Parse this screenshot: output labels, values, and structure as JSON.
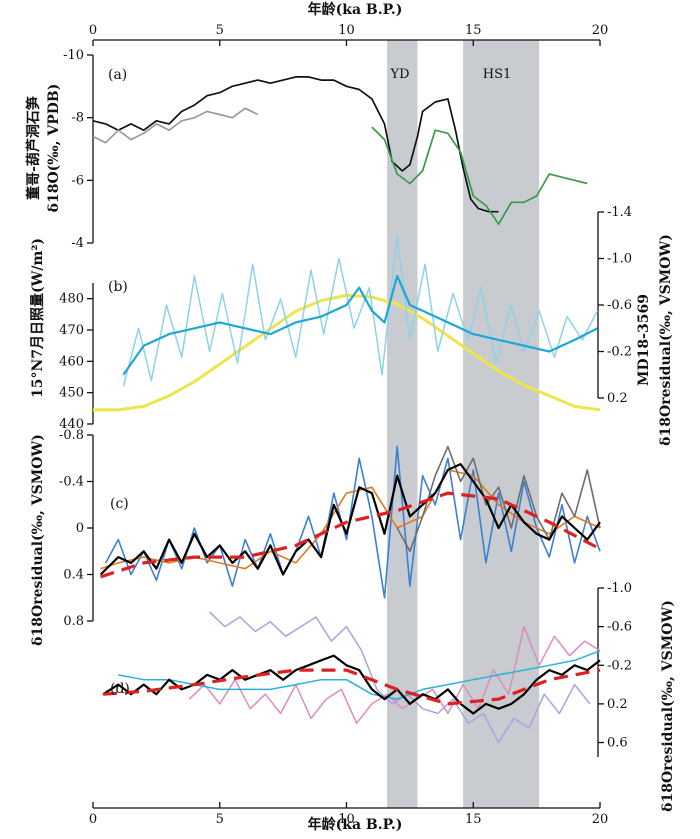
{
  "figure": {
    "top_axis_title": "年龄(ka B.P.)",
    "bottom_axis_title": "年龄(ka B.P.)",
    "x_ticks": [
      "0",
      "5",
      "10",
      "15",
      "20"
    ],
    "bands": [
      {
        "label": "YD",
        "start": 11.6,
        "end": 12.8,
        "color": "#c8ccd0"
      },
      {
        "label": "HS1",
        "start": 14.6,
        "end": 17.6,
        "color": "#c8ccd0"
      }
    ]
  },
  "chart_data": [
    {
      "panel": "(a)",
      "type": "line",
      "xlim": [
        0,
        20
      ],
      "ylim": [
        -10,
        -4
      ],
      "ylabel_lines": [
        "董哥-葫芦洞石笋",
        "δ18O(‰, VPDB)"
      ],
      "yticks": [
        "-10",
        "-8",
        "-6",
        "-4"
      ],
      "series": [
        {
          "name": "董哥洞石笋 δ18O",
          "color": "#111111",
          "x": [
            0,
            0.5,
            1,
            1.5,
            2,
            2.5,
            3,
            3.5,
            4,
            4.5,
            5,
            5.5,
            6,
            6.5,
            7,
            7.5,
            8,
            8.5,
            9,
            9.5,
            10,
            10.5,
            11,
            11.5,
            11.8,
            12.2,
            12.5,
            12.8,
            13,
            13.5,
            14,
            14.3,
            14.6,
            14.9,
            15.2,
            15.6,
            16
          ],
          "y": [
            -7.9,
            -7.8,
            -7.6,
            -7.8,
            -7.6,
            -7.9,
            -7.8,
            -8.2,
            -8.4,
            -8.7,
            -8.8,
            -9,
            -9.1,
            -9.2,
            -9.1,
            -9.2,
            -9.3,
            -9.3,
            -9.2,
            -9.2,
            -9.0,
            -8.9,
            -8.6,
            -7.8,
            -6.6,
            -6.3,
            -6.5,
            -7.4,
            -8.2,
            -8.5,
            -8.6,
            -7.6,
            -6.4,
            -5.4,
            -5.1,
            -5.0,
            -5.0
          ]
        },
        {
          "name": "葫芦洞石笋 δ18O (灰)",
          "color": "#9a9a9a",
          "x": [
            0,
            0.5,
            1,
            1.5,
            2,
            2.5,
            3,
            3.5,
            4,
            4.5,
            5,
            5.5,
            6,
            6.5
          ],
          "y": [
            -7.4,
            -7.2,
            -7.6,
            -7.3,
            -7.5,
            -7.8,
            -7.6,
            -7.9,
            -8.0,
            -8.2,
            -8.1,
            -8.0,
            -8.3,
            -8.1
          ]
        },
        {
          "name": "葫芦洞石笋 δ18O (绿)",
          "color": "#3a9a48",
          "x": [
            11,
            11.5,
            12,
            12.5,
            13,
            13.5,
            14,
            14.5,
            15,
            15.5,
            16,
            16.5,
            17,
            17.5,
            18,
            18.5,
            19,
            19.5
          ],
          "y": [
            -7.7,
            -7.3,
            -6.2,
            -5.9,
            -6.3,
            -7.6,
            -7.5,
            -6.9,
            -5.5,
            -5.2,
            -4.6,
            -5.3,
            -5.3,
            -5.5,
            -6.2,
            -6.1,
            -6.0,
            -5.9
          ]
        }
      ]
    },
    {
      "panel": "(b)",
      "type": "line",
      "xlim": [
        0,
        20
      ],
      "ylim_left": [
        435,
        485
      ],
      "ylim_right": [
        0.2,
        -1.4
      ],
      "ylabel_left": "15°N7月日照量(W/m²)",
      "ylabel_right_lines": [
        "MD18-3569",
        "δ18Oresidual(‰, VSMOW)"
      ],
      "yticks_left": [
        "440",
        "450",
        "460",
        "470",
        "480"
      ],
      "yticks_right": [
        "-1.4",
        "-1.0",
        "-0.6",
        "-0.2",
        "0.2"
      ],
      "series": [
        {
          "name": "15°N 7月日照量",
          "axis": "left",
          "color": "#eee54a",
          "x": [
            0,
            1,
            2,
            3,
            4,
            5,
            6,
            7,
            8,
            9,
            10,
            11,
            12,
            13,
            14,
            15,
            16,
            17,
            18,
            19,
            20
          ],
          "y": [
            444,
            444,
            445,
            448,
            452,
            457,
            462,
            467,
            472,
            475,
            476.5,
            476,
            474,
            470,
            465,
            460,
            455,
            451,
            448,
            445,
            444
          ]
        },
        {
          "name": "MD18-3569 原始",
          "axis": "right",
          "color": "#8ed2ea",
          "x": [
            1.2,
            1.8,
            2.3,
            2.9,
            3.5,
            4,
            4.6,
            5.1,
            5.7,
            6.3,
            6.8,
            7.4,
            8,
            8.6,
            9.1,
            9.7,
            10.3,
            10.9,
            11.4,
            12,
            12.5,
            13.1,
            13.6,
            14.2,
            14.8,
            15.3,
            15.9,
            16.5,
            17,
            17.6,
            18.2,
            18.7,
            19.3,
            19.9
          ],
          "y": [
            0.1,
            -0.4,
            0.05,
            -0.6,
            -0.15,
            -0.85,
            -0.2,
            -0.7,
            -0.1,
            -0.95,
            -0.3,
            -0.65,
            -0.15,
            -0.9,
            -0.35,
            -1.0,
            -0.4,
            -0.75,
            0.0,
            -1.2,
            -0.3,
            -0.95,
            -0.2,
            -0.7,
            -0.3,
            -0.75,
            -0.1,
            -0.6,
            -0.2,
            -0.55,
            -0.15,
            -0.5,
            -0.3,
            -0.55
          ]
        },
        {
          "name": "MD18-3569 平滑",
          "axis": "right",
          "color": "#1ea6d4",
          "x": [
            1.2,
            2,
            3,
            4,
            5,
            6,
            7,
            8,
            9,
            10,
            10.5,
            11,
            11.5,
            12,
            12.5,
            13,
            14,
            15,
            16,
            17,
            18,
            19,
            19.9
          ],
          "y": [
            0.0,
            -0.25,
            -0.35,
            -0.4,
            -0.45,
            -0.4,
            -0.35,
            -0.45,
            -0.5,
            -0.6,
            -0.75,
            -0.55,
            -0.45,
            -0.85,
            -0.6,
            -0.55,
            -0.45,
            -0.35,
            -0.3,
            -0.25,
            -0.2,
            -0.3,
            -0.4
          ]
        }
      ]
    },
    {
      "panel": "(c)",
      "type": "line",
      "xlim": [
        0,
        20
      ],
      "ylim": [
        0.8,
        -0.8
      ],
      "ylabel": "δ18Oresidual(‰, VSMOW)",
      "yticks": [
        "-0.8",
        "-0.4",
        "0",
        "0.4",
        "0.8"
      ],
      "series": [
        {
          "name": "蓝色记录",
          "color": "#3c7fd6",
          "x": [
            0.5,
            1,
            1.5,
            2,
            2.5,
            3,
            3.5,
            4,
            4.5,
            5,
            5.5,
            6,
            6.5,
            7,
            7.5,
            8,
            8.5,
            9,
            9.5,
            10,
            10.5,
            11,
            11.5,
            12,
            12.5,
            13,
            13.5,
            14,
            14.5,
            15,
            15.5,
            16,
            16.5,
            17,
            17.5,
            18,
            18.5,
            19,
            19.5,
            20
          ],
          "y": [
            0.3,
            0.1,
            0.4,
            0.2,
            0.45,
            0.1,
            0.35,
            0.0,
            0.3,
            0.15,
            0.5,
            0.1,
            0.35,
            0.05,
            0.4,
            0.2,
            -0.1,
            0.25,
            -0.3,
            0.1,
            -0.6,
            -0.1,
            0.6,
            -0.7,
            0.5,
            -0.45,
            -0.2,
            -0.6,
            0.1,
            -0.5,
            0.3,
            -0.3,
            0.2,
            -0.4,
            0.0,
            0.25,
            -0.2,
            0.3,
            -0.1,
            0.2
          ]
        },
        {
          "name": "橙色记录",
          "color": "#e07a1c",
          "x": [
            0.3,
            1,
            2,
            3,
            4,
            5,
            6,
            7,
            8,
            9,
            10,
            11,
            12,
            13,
            14,
            15,
            16,
            17,
            18,
            19,
            20
          ],
          "y": [
            0.35,
            0.3,
            0.25,
            0.3,
            0.25,
            0.3,
            0.35,
            0.2,
            0.3,
            0.05,
            -0.3,
            -0.35,
            0.0,
            -0.1,
            -0.5,
            -0.45,
            -0.2,
            -0.05,
            0.05,
            -0.1,
            0.0
          ]
        },
        {
          "name": "灰色记录",
          "color": "#6d6d6d",
          "x": [
            12,
            12.5,
            13,
            13.5,
            14,
            14.5,
            15,
            15.5,
            16,
            16.5,
            17,
            17.5,
            18,
            18.5,
            19,
            19.5,
            20
          ],
          "y": [
            0.0,
            0.2,
            -0.1,
            -0.45,
            -0.7,
            -0.4,
            -0.6,
            -0.2,
            -0.35,
            0.0,
            -0.45,
            -0.1,
            0.1,
            -0.3,
            -0.1,
            -0.5,
            0.0
          ]
        },
        {
          "name": "黑色平滑曲线",
          "color": "#000000",
          "x": [
            0.3,
            1,
            1.5,
            2,
            2.5,
            3,
            3.5,
            4,
            4.5,
            5,
            5.5,
            6,
            6.5,
            7,
            7.5,
            8,
            8.5,
            9,
            9.5,
            10,
            10.5,
            11,
            11.5,
            12,
            12.5,
            13,
            13.5,
            14,
            14.5,
            15,
            15.5,
            16,
            16.5,
            17,
            17.5,
            18,
            18.5,
            19,
            19.5,
            20
          ],
          "y": [
            0.4,
            0.25,
            0.3,
            0.2,
            0.35,
            0.1,
            0.3,
            0.05,
            0.25,
            0.15,
            0.3,
            0.2,
            0.35,
            0.15,
            0.4,
            0.2,
            0.1,
            0.25,
            -0.2,
            0.05,
            -0.35,
            -0.3,
            0.05,
            -0.45,
            -0.1,
            -0.2,
            -0.3,
            -0.5,
            -0.55,
            -0.4,
            -0.25,
            0.0,
            -0.2,
            -0.05,
            0.05,
            0.1,
            -0.1,
            0.0,
            0.1,
            -0.05
          ]
        },
        {
          "name": "红色趋势线",
          "color": "#dd2020",
          "x": [
            0.3,
            2,
            4,
            6,
            8,
            10,
            12,
            14,
            16,
            18,
            20
          ],
          "y": [
            0.42,
            0.3,
            0.25,
            0.25,
            0.15,
            -0.05,
            -0.15,
            -0.3,
            -0.25,
            -0.05,
            0.18
          ]
        }
      ]
    },
    {
      "panel": "(d)",
      "type": "line",
      "xlim": [
        0,
        20
      ],
      "ylim": [
        0.75,
        -1.0
      ],
      "ylabel": "δ18Oresidual(‰, VSMOW)",
      "yticks": [
        "-1.0",
        "-0.6",
        "-0.2",
        "0.2",
        "0.6"
      ],
      "series": [
        {
          "name": "淡紫色记录",
          "color": "#a9a3e2",
          "x": [
            4.6,
            5.2,
            5.8,
            6.4,
            7,
            7.6,
            8.2,
            8.8,
            9.4,
            10,
            10.6,
            11.2,
            11.8,
            12.4,
            13,
            13.6,
            14.2,
            14.8,
            15.4,
            16,
            16.6,
            17.2,
            17.8,
            18.4,
            19,
            19.6
          ],
          "y": [
            -0.75,
            -0.6,
            -0.7,
            -0.55,
            -0.65,
            -0.5,
            -0.6,
            -0.7,
            -0.45,
            -0.6,
            -0.35,
            0.05,
            0.2,
            0.1,
            0.25,
            0.3,
            0.15,
            0.4,
            0.3,
            0.6,
            0.35,
            0.45,
            0.1,
            0.3,
            0.0,
            0.2
          ]
        },
        {
          "name": "粉色记录",
          "color": "#dd8cc0",
          "x": [
            3.8,
            4.4,
            5,
            5.6,
            6.2,
            6.8,
            7.4,
            8,
            8.6,
            9.2,
            9.8,
            10.4,
            11,
            11.6,
            12.2,
            12.8,
            13.4,
            14,
            14.6,
            15.2,
            15.8,
            16.4,
            17,
            17.6,
            18.2,
            18.8,
            19.4,
            20
          ],
          "y": [
            0.15,
            0.0,
            0.2,
            -0.05,
            0.25,
            0.1,
            0.3,
            0.0,
            0.35,
            0.15,
            0.05,
            0.4,
            0.2,
            0.1,
            0.25,
            0.15,
            0.05,
            0.3,
            0.0,
            0.25,
            -0.15,
            0.1,
            -0.6,
            -0.2,
            -0.5,
            -0.3,
            -0.45,
            -0.35
          ]
        },
        {
          "name": "青色记录",
          "color": "#27b3d8",
          "x": [
            1,
            2,
            3,
            4,
            5,
            6,
            7,
            8,
            9,
            10,
            11,
            12,
            13,
            14,
            15,
            16,
            17,
            18,
            19,
            20
          ],
          "y": [
            -0.1,
            -0.05,
            -0.05,
            0.0,
            0.05,
            0.05,
            0.05,
            0.0,
            -0.05,
            -0.05,
            0.1,
            0.15,
            0.05,
            0.0,
            -0.05,
            -0.1,
            -0.15,
            -0.2,
            -0.25,
            -0.35
          ]
        },
        {
          "name": "黑色平滑曲线",
          "color": "#000000",
          "x": [
            0.4,
            1,
            1.5,
            2,
            2.5,
            3,
            3.5,
            4,
            4.5,
            5,
            5.5,
            6,
            6.5,
            7,
            7.5,
            8,
            8.5,
            9,
            9.5,
            10,
            10.5,
            11,
            11.5,
            12,
            12.5,
            13,
            13.5,
            14,
            14.5,
            15,
            15.5,
            16,
            16.5,
            17,
            17.5,
            18,
            18.5,
            19,
            19.5,
            20
          ],
          "y": [
            0.1,
            0.0,
            0.1,
            0.0,
            0.1,
            -0.05,
            0.05,
            0.0,
            -0.1,
            -0.05,
            -0.15,
            -0.05,
            -0.1,
            -0.15,
            -0.05,
            -0.15,
            -0.2,
            -0.25,
            -0.3,
            -0.2,
            -0.15,
            0.05,
            0.15,
            0.05,
            0.2,
            0.1,
            0.15,
            0.05,
            0.2,
            0.3,
            0.2,
            0.25,
            0.2,
            0.1,
            -0.05,
            -0.15,
            -0.1,
            -0.2,
            -0.15,
            -0.25
          ]
        },
        {
          "name": "红色趋势线",
          "color": "#dd2020",
          "x": [
            0.4,
            2,
            4,
            6,
            8,
            10,
            12,
            14,
            16,
            18,
            20
          ],
          "y": [
            0.1,
            0.07,
            0.0,
            -0.08,
            -0.15,
            -0.15,
            0.05,
            0.2,
            0.15,
            -0.05,
            -0.15
          ]
        }
      ]
    }
  ]
}
